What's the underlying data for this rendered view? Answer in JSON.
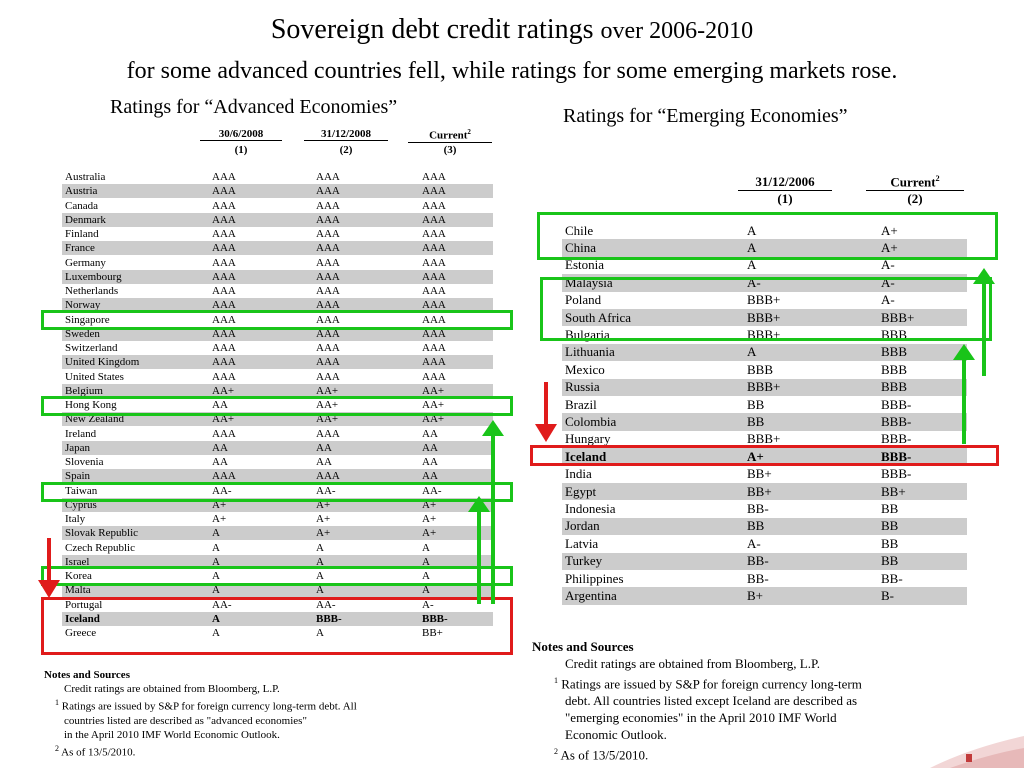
{
  "title": {
    "main": "Sovereign debt credit ratings",
    "main_small": "over 2006-2010",
    "subtitle": "for some advanced countries fell,   while ratings for some emerging markets rose."
  },
  "advanced": {
    "heading": "Ratings for “Advanced Economies”",
    "columns": [
      {
        "label": "30/6/2008",
        "num": "(1)"
      },
      {
        "label": "31/12/2008",
        "num": "(2)"
      },
      {
        "label": "Current",
        "sup": "2",
        "num": "(3)"
      }
    ],
    "rows": [
      {
        "country": "Australia",
        "r1": "AAA",
        "r2": "AAA",
        "r3": "AAA"
      },
      {
        "country": "Austria",
        "r1": "AAA",
        "r2": "AAA",
        "r3": "AAA"
      },
      {
        "country": "Canada",
        "r1": "AAA",
        "r2": "AAA",
        "r3": "AAA"
      },
      {
        "country": "Denmark",
        "r1": "AAA",
        "r2": "AAA",
        "r3": "AAA"
      },
      {
        "country": "Finland",
        "r1": "AAA",
        "r2": "AAA",
        "r3": "AAA"
      },
      {
        "country": "France",
        "r1": "AAA",
        "r2": "AAA",
        "r3": "AAA"
      },
      {
        "country": "Germany",
        "r1": "AAA",
        "r2": "AAA",
        "r3": "AAA"
      },
      {
        "country": "Luxembourg",
        "r1": "AAA",
        "r2": "AAA",
        "r3": "AAA"
      },
      {
        "country": "Netherlands",
        "r1": "AAA",
        "r2": "AAA",
        "r3": "AAA"
      },
      {
        "country": "Norway",
        "r1": "AAA",
        "r2": "AAA",
        "r3": "AAA"
      },
      {
        "country": "Singapore",
        "r1": "AAA",
        "r2": "AAA",
        "r3": "AAA"
      },
      {
        "country": "Sweden",
        "r1": "AAA",
        "r2": "AAA",
        "r3": "AAA"
      },
      {
        "country": "Switzerland",
        "r1": "AAA",
        "r2": "AAA",
        "r3": "AAA"
      },
      {
        "country": "United Kingdom",
        "r1": "AAA",
        "r2": "AAA",
        "r3": "AAA"
      },
      {
        "country": "United States",
        "r1": "AAA",
        "r2": "AAA",
        "r3": "AAA"
      },
      {
        "country": "Belgium",
        "r1": "AA+",
        "r2": "AA+",
        "r3": "AA+"
      },
      {
        "country": "Hong Kong",
        "r1": "AA",
        "r2": "AA+",
        "r3": "AA+"
      },
      {
        "country": "New Zealand",
        "r1": "AA+",
        "r2": "AA+",
        "r3": "AA+"
      },
      {
        "country": "Ireland",
        "r1": "AAA",
        "r2": "AAA",
        "r3": "AA"
      },
      {
        "country": "Japan",
        "r1": "AA",
        "r2": "AA",
        "r3": "AA"
      },
      {
        "country": "Slovenia",
        "r1": "AA",
        "r2": "AA",
        "r3": "AA"
      },
      {
        "country": "Spain",
        "r1": "AAA",
        "r2": "AAA",
        "r3": "AA"
      },
      {
        "country": "Taiwan",
        "r1": "AA-",
        "r2": "AA-",
        "r3": "AA-"
      },
      {
        "country": "Cyprus",
        "r1": "A+",
        "r2": "A+",
        "r3": "A+"
      },
      {
        "country": "Italy",
        "r1": "A+",
        "r2": "A+",
        "r3": "A+"
      },
      {
        "country": "Slovak Republic",
        "r1": "A",
        "r2": "A+",
        "r3": "A+"
      },
      {
        "country": "Czech Republic",
        "r1": "A",
        "r2": "A",
        "r3": "A"
      },
      {
        "country": "Israel",
        "r1": "A",
        "r2": "A",
        "r3": "A"
      },
      {
        "country": "Korea",
        "r1": "A",
        "r2": "A",
        "r3": "A"
      },
      {
        "country": "Malta",
        "r1": "A",
        "r2": "A",
        "r3": "A"
      },
      {
        "country": "Portugal",
        "r1": "AA-",
        "r2": "AA-",
        "r3": "A-"
      },
      {
        "country": "Iceland",
        "r1": "A",
        "r2": "BBB-",
        "r3": "BBB-",
        "bold": true
      },
      {
        "country": "Greece",
        "r1": "A",
        "r2": "A",
        "r3": "BB+"
      }
    ],
    "notes": {
      "heading": "Notes and Sources",
      "line1": "Credit ratings are obtained from Bloomberg, L.P.",
      "sup1": "1",
      "line2": "Ratings are issued by S&P for foreign currency long-term debt. All",
      "line3": "countries listed are described as \"advanced economies\"",
      "line4": "in the April 2010 IMF World Economic Outlook.",
      "sup2": "2",
      "line5": "As of 13/5/2010."
    }
  },
  "emerging": {
    "heading": "Ratings for “Emerging Economies”",
    "columns": [
      {
        "label": "31/12/2006",
        "num": "(1)"
      },
      {
        "label": "Current",
        "sup": "2",
        "num": "(2)"
      }
    ],
    "rows": [
      {
        "country": "Chile",
        "r1": "A",
        "r2": "A+"
      },
      {
        "country": "China",
        "r1": "A",
        "r2": "A+"
      },
      {
        "country": "Estonia",
        "r1": "A",
        "r2": "A-"
      },
      {
        "country": "Malaysia",
        "r1": "A-",
        "r2": "A-"
      },
      {
        "country": "Poland",
        "r1": "BBB+",
        "r2": "A-"
      },
      {
        "country": "South Africa",
        "r1": "BBB+",
        "r2": "BBB+"
      },
      {
        "country": "Bulgaria",
        "r1": "BBB+",
        "r2": "BBB"
      },
      {
        "country": "Lithuania",
        "r1": "A",
        "r2": "BBB"
      },
      {
        "country": "Mexico",
        "r1": "BBB",
        "r2": "BBB"
      },
      {
        "country": "Russia",
        "r1": "BBB+",
        "r2": "BBB"
      },
      {
        "country": "Brazil",
        "r1": "BB",
        "r2": "BBB-"
      },
      {
        "country": "Colombia",
        "r1": "BB",
        "r2": "BBB-"
      },
      {
        "country": "Hungary",
        "r1": "BBB+",
        "r2": "BBB-"
      },
      {
        "country": "Iceland",
        "r1": "A+",
        "r2": "BBB-",
        "bold": true
      },
      {
        "country": "India",
        "r1": "BB+",
        "r2": "BBB-"
      },
      {
        "country": "Egypt",
        "r1": "BB+",
        "r2": "BB+"
      },
      {
        "country": "Indonesia",
        "r1": "BB-",
        "r2": "BB"
      },
      {
        "country": "Jordan",
        "r1": "BB",
        "r2": "BB"
      },
      {
        "country": "Latvia",
        "r1": "A-",
        "r2": "BB"
      },
      {
        "country": "Turkey",
        "r1": "BB-",
        "r2": "BB"
      },
      {
        "country": "Philippines",
        "r1": "BB-",
        "r2": "BB-"
      },
      {
        "country": "Argentina",
        "r1": "B+",
        "r2": "B-"
      }
    ],
    "notes": {
      "heading": "Notes and Sources",
      "line1": "Credit ratings are obtained from Bloomberg, L.P.",
      "sup1": "1",
      "line2": "Ratings are issued by S&P for foreign currency long-term",
      "line3": "debt. All countries listed except Iceland are described as",
      "line4": "\"emerging economies\" in the April 2010 IMF World",
      "line5": "Economic Outlook.",
      "sup2": "2",
      "line6": "As of 13/5/2010."
    }
  },
  "colors": {
    "highlight_green": "#19c419",
    "highlight_red": "#e01b1b",
    "row_shade": "#cccccc"
  }
}
